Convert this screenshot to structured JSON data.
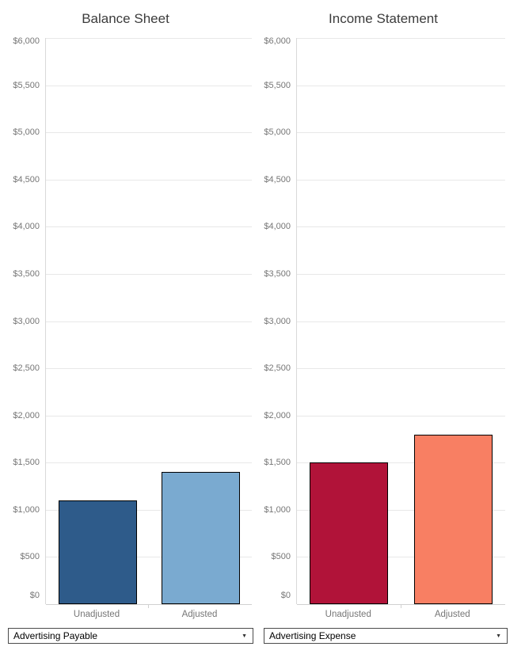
{
  "page": {
    "background": "#ffffff"
  },
  "chart_data": [
    {
      "type": "bar",
      "title": "Balance Sheet",
      "categories": [
        "Unadjusted",
        "Adjusted"
      ],
      "values": [
        1100,
        1400
      ],
      "bar_colors": [
        "#2e5b8a",
        "#7aaad0"
      ],
      "ylim": [
        0,
        6000
      ],
      "ytick_step": 500,
      "grid": true,
      "legend": "none",
      "selector_value": "Advertising Payable"
    },
    {
      "type": "bar",
      "title": "Income Statement",
      "categories": [
        "Unadjusted",
        "Adjusted"
      ],
      "values": [
        1500,
        1800
      ],
      "bar_colors": [
        "#b11339",
        "#f87f63"
      ],
      "ylim": [
        0,
        6000
      ],
      "ytick_step": 500,
      "grid": true,
      "legend": "none",
      "selector_value": "Advertising Expense"
    }
  ],
  "y_axis_tick_labels": [
    "$0",
    "$500",
    "$1,000",
    "$1,500",
    "$2,000",
    "$2,500",
    "$3,000",
    "$3,500",
    "$4,000",
    "$4,500",
    "$5,000",
    "$5,500",
    "$6,000"
  ],
  "dropdown_caret": "▼",
  "colors": {
    "gridline": "#e8e8e8",
    "axis_line": "#d0d0d0",
    "tick_text": "#767676",
    "title_text": "#3c3c3c",
    "bar_border": "#000000",
    "dropdown_border": "#4b4b4b"
  }
}
